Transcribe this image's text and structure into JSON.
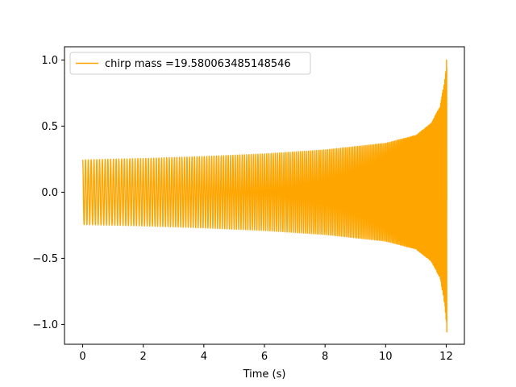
{
  "chart_data": {
    "type": "line",
    "title": "",
    "xlabel": "Time (s)",
    "ylabel": "",
    "xlim": [
      -0.6,
      12.6
    ],
    "ylim": [
      -1.15,
      1.1
    ],
    "x_ticks": [
      0,
      2,
      4,
      6,
      8,
      10,
      12
    ],
    "y_ticks": [
      -1.0,
      -0.5,
      0.0,
      0.5,
      1.0
    ],
    "x_tick_labels": [
      "0",
      "2",
      "4",
      "6",
      "8",
      "10",
      "12"
    ],
    "y_tick_labels": [
      "−1.0",
      "−0.5",
      "0.0",
      "0.5",
      "1.0"
    ],
    "grid": false,
    "legend_position": "top-left",
    "series": [
      {
        "name": "chirp mass =19.580063485148546",
        "color": "#ffa500",
        "style": "chirp-waveform",
        "x_start": 0.0,
        "x_end": 12.02,
        "envelope": {
          "x": [
            0.0,
            2,
            4,
            6,
            8,
            10,
            11,
            11.5,
            11.8,
            11.95,
            12.02
          ],
          "amplitude": [
            0.245,
            0.255,
            0.27,
            0.29,
            0.32,
            0.37,
            0.43,
            0.52,
            0.65,
            0.85,
            1.03
          ]
        },
        "peak_max": 1.0,
        "peak_min": -1.06
      }
    ]
  }
}
